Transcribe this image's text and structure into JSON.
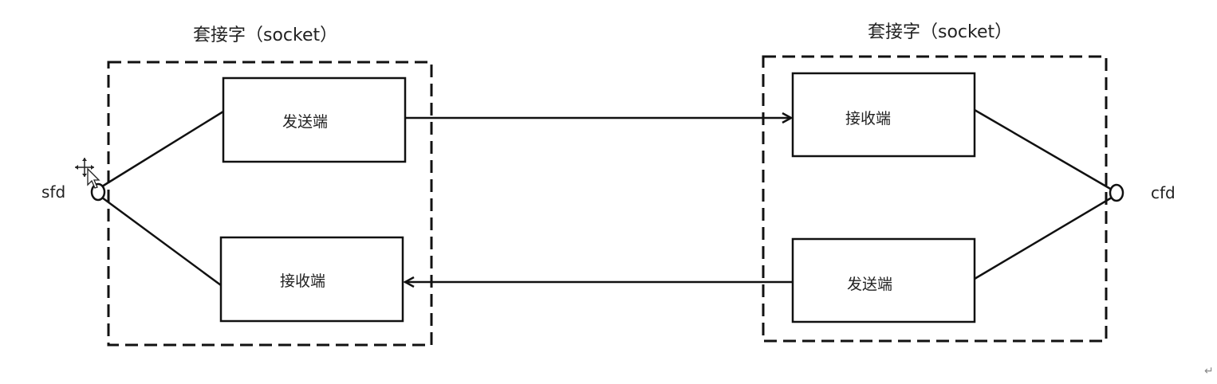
{
  "left_socket": {
    "title": "套接字（socket）",
    "top_box": "发送端",
    "bottom_box": "接收端",
    "fd_label": "sfd"
  },
  "right_socket": {
    "title": "套接字（socket）",
    "top_box": "接收端",
    "bottom_box": "发送端",
    "fd_label": "cfd"
  },
  "paragraph_mark": "↵"
}
